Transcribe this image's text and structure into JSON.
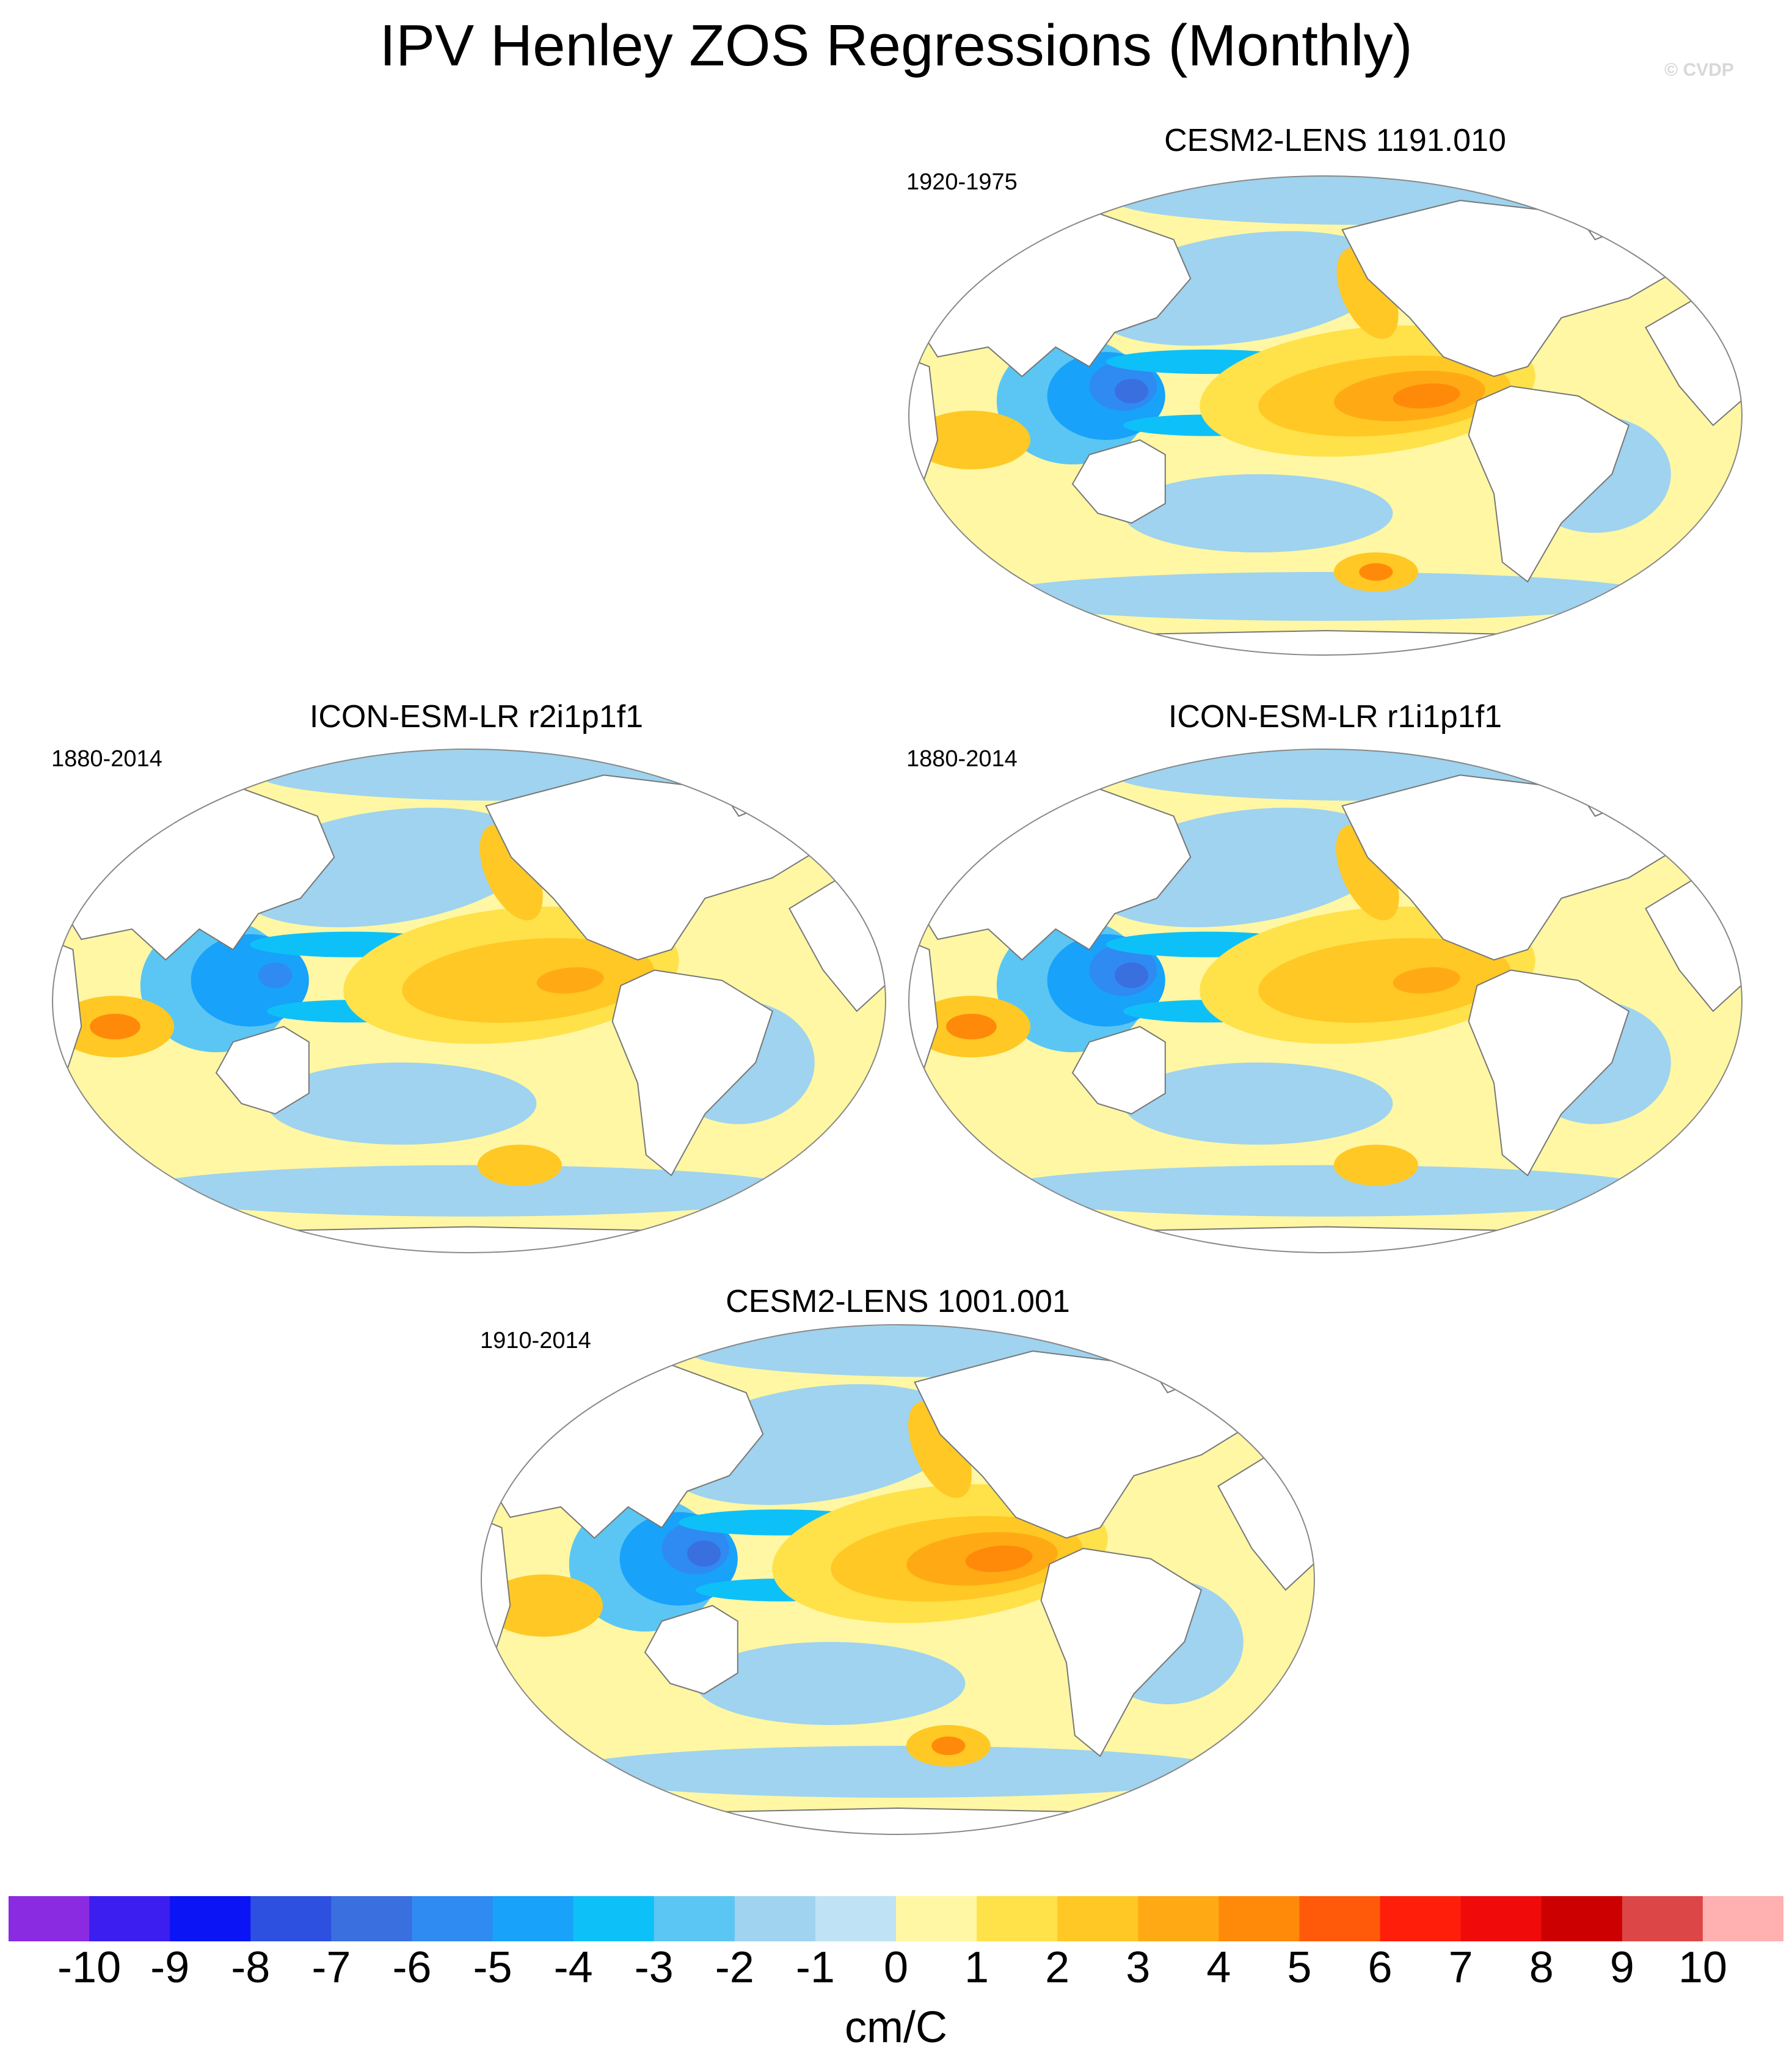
{
  "title": "IPV Henley ZOS Regressions (Monthly)",
  "watermark": "© CVDP",
  "chart_data": {
    "type": "heatmap",
    "variable": "ZOS",
    "projection": "Robinson (global map)",
    "panels": [
      {
        "id": "p1",
        "title": "CESM2-LENS 1191.010",
        "period": "1920-1975",
        "pattern": {
          "east_pacific_max": 4,
          "west_pacific_min": -7,
          "indian_ocean": 2,
          "north_pacific": -2,
          "southern_ocean_max": 4
        }
      },
      {
        "id": "p2",
        "title": "ICON-ESM-LR r2i1p1f1",
        "period": "1880-2014",
        "pattern": {
          "east_pacific_max": 3,
          "west_pacific_min": -6,
          "indian_ocean": 4,
          "north_pacific": -2,
          "southern_ocean_max": 2
        }
      },
      {
        "id": "p3",
        "title": "ICON-ESM-LR r1i1p1f1",
        "period": "1880-2014",
        "pattern": {
          "east_pacific_max": 3,
          "west_pacific_min": -7,
          "indian_ocean": 4,
          "north_pacific": -2,
          "southern_ocean_max": 2
        }
      },
      {
        "id": "p4",
        "title": "CESM2-LENS 1001.001",
        "period": "1910-2014",
        "pattern": {
          "east_pacific_max": 4,
          "west_pacific_min": -7,
          "indian_ocean": 2,
          "north_pacific": -2,
          "southern_ocean_max": 4
        }
      }
    ],
    "colorbar": {
      "levels": [
        -10,
        -9,
        -8,
        -7,
        -6,
        -5,
        -4,
        -3,
        -2,
        -1,
        0,
        1,
        2,
        3,
        4,
        5,
        6,
        7,
        8,
        9,
        10
      ],
      "tick_labels": [
        "-10",
        "-9",
        "-8",
        "-7",
        "-6",
        "-5",
        "-4",
        "-3",
        "-2",
        "-1",
        "0",
        "1",
        "2",
        "3",
        "4",
        "5",
        "6",
        "7",
        "8",
        "9",
        "10"
      ],
      "colors": [
        "#8a2be2",
        "#3c1ef0",
        "#0a14f5",
        "#2d50e0",
        "#3a6fe0",
        "#2f8af2",
        "#18a2fa",
        "#0ec0f8",
        "#5bc6f3",
        "#9fd3ef",
        "#bfe2f5",
        "#fff7a3",
        "#ffe14a",
        "#ffc824",
        "#ffaa14",
        "#ff8a0a",
        "#ff5a0a",
        "#ff1e0a",
        "#f00a0a",
        "#cc0000",
        "#dc4646",
        "#ffb0b0"
      ],
      "units": "cm/C"
    }
  }
}
